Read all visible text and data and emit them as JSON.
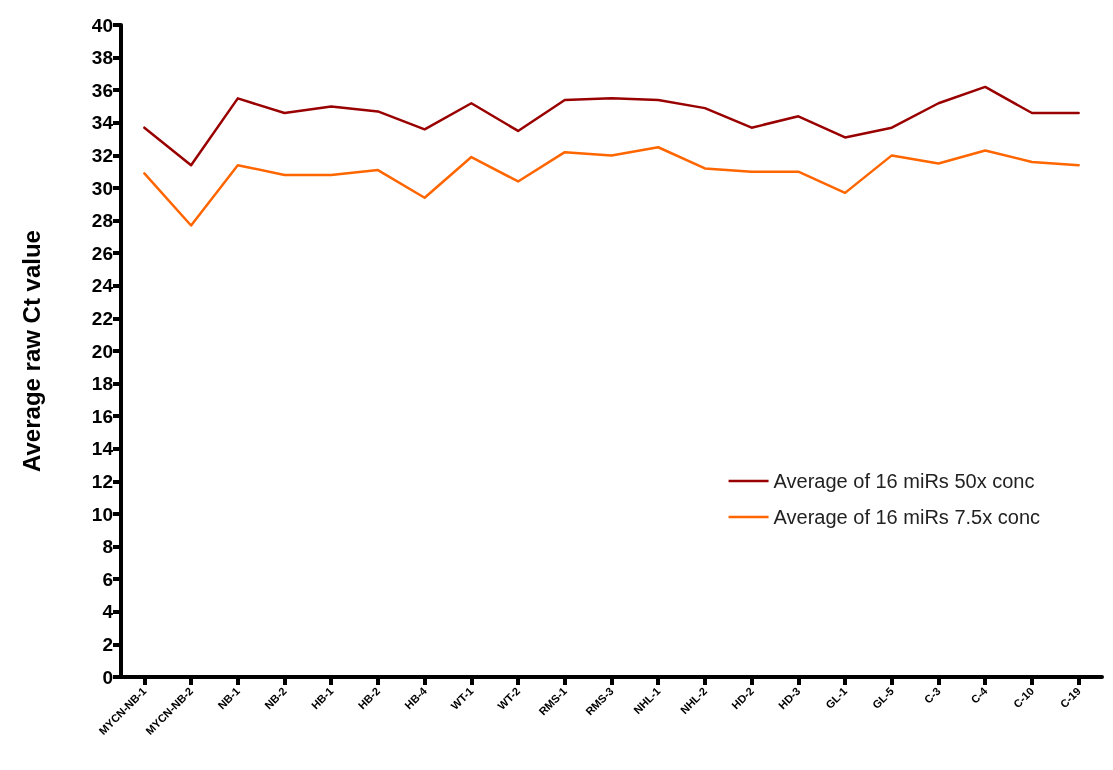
{
  "chart_data": {
    "type": "line",
    "ylabel": "Average raw Ct value",
    "categories": [
      "MYCN-NB-1",
      "MYCN-NB-2",
      "NB-1",
      "NB-2",
      "HB-1",
      "HB-2",
      "HB-4",
      "WT-1",
      "WT-2",
      "RMS-1",
      "RMS-3",
      "NHL-1",
      "NHL-2",
      "HD-2",
      "HD-3",
      "GL-1",
      "GL-5",
      "C-3",
      "C-4",
      "C-10",
      "C-19"
    ],
    "series": [
      {
        "name": "Average of 16 miRs 50x conc",
        "color": "#990000",
        "values": [
          33.7,
          31.4,
          35.5,
          34.6,
          35.0,
          34.7,
          33.6,
          35.2,
          33.5,
          35.4,
          35.5,
          35.4,
          34.9,
          33.7,
          34.4,
          33.1,
          33.7,
          35.2,
          36.2,
          34.6,
          34.6
        ]
      },
      {
        "name": "Average of 16 miRs 7.5x conc",
        "color": "#ff6600",
        "values": [
          30.9,
          27.7,
          31.4,
          30.8,
          30.8,
          31.1,
          29.4,
          31.9,
          30.4,
          32.2,
          32.0,
          32.5,
          31.2,
          31.0,
          31.0,
          29.7,
          32.0,
          31.5,
          32.3,
          31.6,
          31.4
        ]
      }
    ],
    "ylim": [
      0,
      40
    ],
    "yticks": [
      0,
      2,
      4,
      6,
      8,
      10,
      12,
      14,
      16,
      18,
      20,
      22,
      24,
      26,
      28,
      30,
      32,
      34,
      36,
      38,
      40
    ],
    "grid": false,
    "legend": "bottom right",
    "marker": "none",
    "line_style": "solid"
  }
}
